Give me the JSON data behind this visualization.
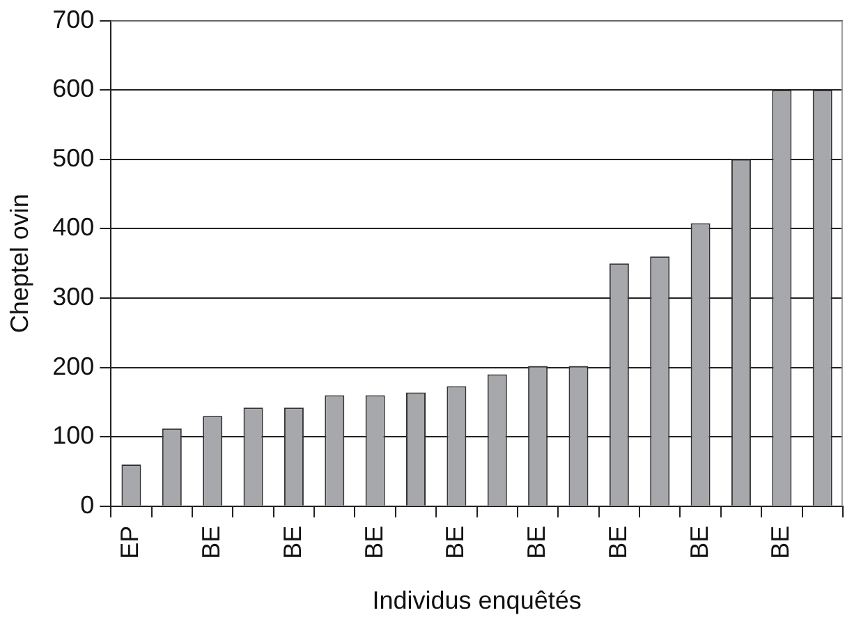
{
  "chart_data": {
    "type": "bar",
    "xlabel": "Individus enquêtés",
    "ylabel": "Cheptel ovin",
    "categories": [
      "EP",
      null,
      "BE",
      null,
      "BE",
      null,
      "BE",
      null,
      "BE",
      null,
      "BE",
      null,
      "BE",
      null,
      "BE",
      null,
      "BE",
      null
    ],
    "values": [
      60,
      112,
      130,
      142,
      142,
      160,
      160,
      164,
      173,
      190,
      202,
      202,
      350,
      360,
      408,
      500,
      600,
      600
    ],
    "color": "#a7a8ac",
    "ylim": [
      0,
      700
    ],
    "yticks": [
      0,
      100,
      200,
      300,
      400,
      500,
      600,
      700
    ],
    "grid": "y"
  }
}
